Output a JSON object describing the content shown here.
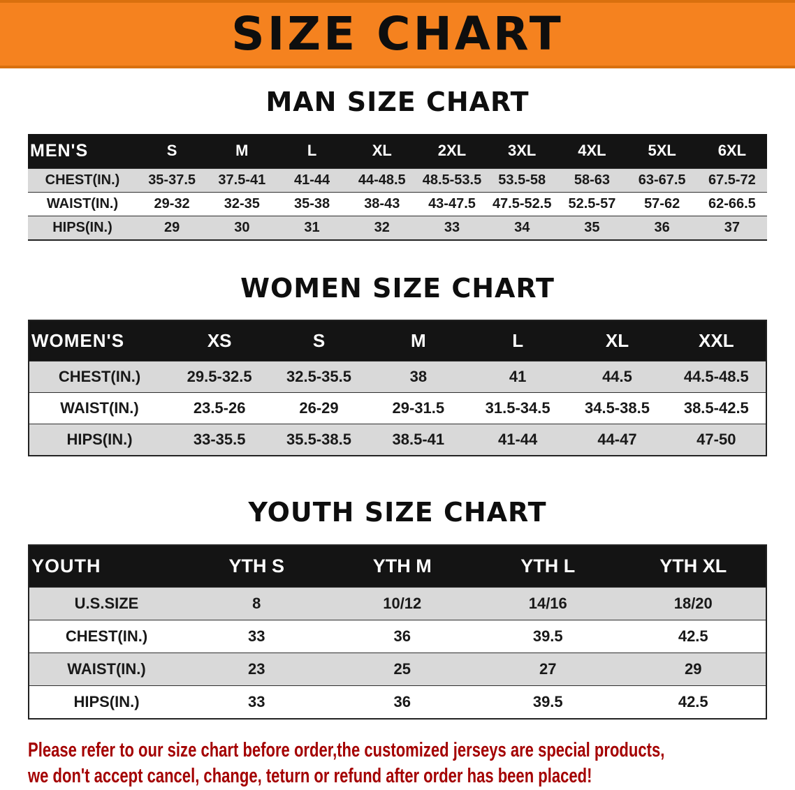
{
  "banner": {
    "title": "SIZE CHART"
  },
  "colors": {
    "banner_bg": "#F5821F",
    "banner_edge": "#D9700E",
    "table_header_bg": "#141414",
    "table_header_text": "#FFFFFF",
    "row_alt_bg": "#D9D9D9",
    "text_color": "#151515",
    "disclaimer_color": "#A40000"
  },
  "men": {
    "heading": "MAN SIZE CHART",
    "header": [
      "MEN'S",
      "S",
      "M",
      "L",
      "XL",
      "2XL",
      "3XL",
      "4XL",
      "5XL",
      "6XL"
    ],
    "rows": [
      [
        "CHEST(IN.)",
        "35-37.5",
        "37.5-41",
        "41-44",
        "44-48.5",
        "48.5-53.5",
        "53.5-58",
        "58-63",
        "63-67.5",
        "67.5-72"
      ],
      [
        "WAIST(IN.)",
        "29-32",
        "32-35",
        "35-38",
        "38-43",
        "43-47.5",
        "47.5-52.5",
        "52.5-57",
        "57-62",
        "62-66.5"
      ],
      [
        "HIPS(IN.)",
        "29",
        "30",
        "31",
        "32",
        "33",
        "34",
        "35",
        "36",
        "37"
      ]
    ]
  },
  "women": {
    "heading": "WOMEN SIZE CHART",
    "header": [
      "WOMEN'S",
      "XS",
      "S",
      "M",
      "L",
      "XL",
      "XXL"
    ],
    "rows": [
      [
        "CHEST(IN.)",
        "29.5-32.5",
        "32.5-35.5",
        "38",
        "41",
        "44.5",
        "44.5-48.5"
      ],
      [
        "WAIST(IN.)",
        "23.5-26",
        "26-29",
        "29-31.5",
        "31.5-34.5",
        "34.5-38.5",
        "38.5-42.5"
      ],
      [
        "HIPS(IN.)",
        "33-35.5",
        "35.5-38.5",
        "38.5-41",
        "41-44",
        "44-47",
        "47-50"
      ]
    ]
  },
  "youth": {
    "heading": "YOUTH SIZE CHART",
    "header": [
      "YOUTH",
      "YTH S",
      "YTH M",
      "YTH L",
      "YTH XL"
    ],
    "rows": [
      [
        "U.S.SIZE",
        "8",
        "10/12",
        "14/16",
        "18/20"
      ],
      [
        "CHEST(IN.)",
        "33",
        "36",
        "39.5",
        "42.5"
      ],
      [
        "WAIST(IN.)",
        "23",
        "25",
        "27",
        "29"
      ],
      [
        "HIPS(IN.)",
        "33",
        "36",
        "39.5",
        "42.5"
      ]
    ]
  },
  "disclaimer": {
    "line1": "Please refer to our size chart before order,the customized jerseys are special products,",
    "line2": "we don't accept cancel, change, teturn or refund after order has been placed!"
  }
}
